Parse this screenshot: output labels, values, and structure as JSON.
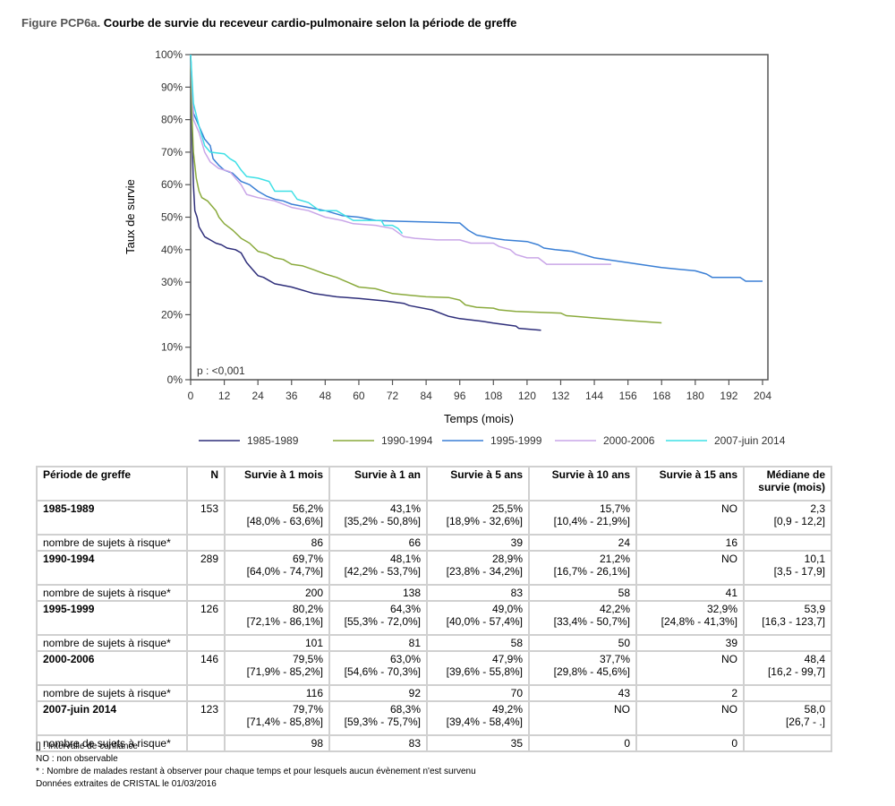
{
  "figure": {
    "prefix": "Figure PCP6a.",
    "title": "Courbe de survie du receveur cardio-pulmonaire selon la période de greffe"
  },
  "chart_data": {
    "type": "line",
    "title": "Courbe de survie du receveur cardio-pulmonaire selon la période de greffe",
    "xlabel": "Temps (mois)",
    "ylabel": "Taux de survie",
    "xlim": [
      0,
      204
    ],
    "ylim": [
      0,
      100
    ],
    "xticks": [
      "0",
      "12",
      "24",
      "36",
      "48",
      "60",
      "72",
      "84",
      "96",
      "108",
      "120",
      "132",
      "144",
      "156",
      "168",
      "180",
      "192",
      "204"
    ],
    "yticks": [
      "0%",
      "10%",
      "20%",
      "30%",
      "40%",
      "50%",
      "60%",
      "70%",
      "80%",
      "90%",
      "100%"
    ],
    "annotation": "p : <0,001",
    "legend_position": "bottom",
    "grid": false,
    "series": [
      {
        "name": "1985-1989",
        "color": "#2e2e7a",
        "points": [
          [
            0,
            100
          ],
          [
            0.5,
            75
          ],
          [
            1,
            60
          ],
          [
            1.5,
            52
          ],
          [
            2.3,
            50
          ],
          [
            3,
            47
          ],
          [
            5,
            44
          ],
          [
            7,
            43
          ],
          [
            9,
            42
          ],
          [
            11,
            41.5
          ],
          [
            13,
            40.5
          ],
          [
            16,
            40
          ],
          [
            18,
            39
          ],
          [
            20,
            36
          ],
          [
            22,
            34
          ],
          [
            24,
            32
          ],
          [
            26,
            31.5
          ],
          [
            28,
            30.5
          ],
          [
            30,
            29.5
          ],
          [
            36,
            28.5
          ],
          [
            44,
            26.5
          ],
          [
            52,
            25.5
          ],
          [
            60,
            25
          ],
          [
            70,
            24.2
          ],
          [
            76,
            23.5
          ],
          [
            78,
            22.8
          ],
          [
            86,
            21.5
          ],
          [
            92,
            19.5
          ],
          [
            96,
            18.8
          ],
          [
            104,
            18
          ],
          [
            108,
            17.4
          ],
          [
            116,
            16.5
          ],
          [
            117,
            15.8
          ],
          [
            125,
            15.2
          ]
        ]
      },
      {
        "name": "1990-1994",
        "color": "#8aaa3c",
        "points": [
          [
            0,
            100
          ],
          [
            0.5,
            80
          ],
          [
            1,
            70
          ],
          [
            2,
            62
          ],
          [
            3,
            58
          ],
          [
            4,
            56
          ],
          [
            6,
            55
          ],
          [
            9,
            52
          ],
          [
            10.1,
            50
          ],
          [
            12,
            48
          ],
          [
            15,
            46
          ],
          [
            18,
            43.5
          ],
          [
            21,
            42
          ],
          [
            24,
            39.5
          ],
          [
            27,
            38.8
          ],
          [
            30,
            37.5
          ],
          [
            33,
            37
          ],
          [
            36,
            35.5
          ],
          [
            40,
            35
          ],
          [
            44,
            33.8
          ],
          [
            48,
            32.5
          ],
          [
            52,
            31.5
          ],
          [
            56,
            30
          ],
          [
            60,
            28.5
          ],
          [
            66,
            28
          ],
          [
            72,
            26.5
          ],
          [
            78,
            26
          ],
          [
            84,
            25.5
          ],
          [
            92,
            25.3
          ],
          [
            96,
            24.5
          ],
          [
            98,
            23
          ],
          [
            102,
            22.3
          ],
          [
            108,
            22
          ],
          [
            110,
            21.5
          ],
          [
            116,
            21
          ],
          [
            132,
            20.5
          ],
          [
            134,
            19.7
          ],
          [
            144,
            19
          ],
          [
            156,
            18.2
          ],
          [
            168,
            17.5
          ]
        ]
      },
      {
        "name": "1995-1999",
        "color": "#3a7fd5",
        "points": [
          [
            0,
            100
          ],
          [
            0.5,
            90
          ],
          [
            1,
            82
          ],
          [
            3,
            78
          ],
          [
            5,
            74
          ],
          [
            7,
            72
          ],
          [
            8,
            68
          ],
          [
            10,
            66
          ],
          [
            12,
            64.5
          ],
          [
            15,
            63.5
          ],
          [
            18,
            61
          ],
          [
            21,
            60
          ],
          [
            24,
            58
          ],
          [
            27,
            56.5
          ],
          [
            30,
            55.5
          ],
          [
            33,
            55
          ],
          [
            36,
            54
          ],
          [
            42,
            53
          ],
          [
            48,
            52
          ],
          [
            54,
            50.5
          ],
          [
            60,
            50
          ],
          [
            66,
            49
          ],
          [
            72,
            48.8
          ],
          [
            84,
            48.5
          ],
          [
            96,
            48.2
          ],
          [
            99,
            46
          ],
          [
            102,
            44.5
          ],
          [
            108,
            43.5
          ],
          [
            112,
            43
          ],
          [
            120,
            42.5
          ],
          [
            124,
            41.5
          ],
          [
            126,
            40.5
          ],
          [
            130,
            40
          ],
          [
            136,
            39.5
          ],
          [
            140,
            38.5
          ],
          [
            144,
            37.5
          ],
          [
            156,
            36
          ],
          [
            168,
            34.5
          ],
          [
            180,
            33.5
          ],
          [
            184,
            32.5
          ],
          [
            186,
            31.5
          ],
          [
            196,
            31.5
          ],
          [
            198,
            30.3
          ],
          [
            204,
            30.3
          ]
        ]
      },
      {
        "name": "2000-2006",
        "color": "#c9a6e8",
        "points": [
          [
            0,
            100
          ],
          [
            0.5,
            90
          ],
          [
            1,
            80
          ],
          [
            3,
            76
          ],
          [
            5,
            70
          ],
          [
            7,
            67
          ],
          [
            10,
            65
          ],
          [
            14,
            64
          ],
          [
            18,
            60
          ],
          [
            20,
            57
          ],
          [
            24,
            56
          ],
          [
            30,
            55
          ],
          [
            36,
            53
          ],
          [
            42,
            52
          ],
          [
            48,
            50
          ],
          [
            54,
            49
          ],
          [
            58,
            48
          ],
          [
            66,
            47.5
          ],
          [
            72,
            46.5
          ],
          [
            76,
            44
          ],
          [
            80,
            43.5
          ],
          [
            88,
            43
          ],
          [
            96,
            43
          ],
          [
            100,
            42
          ],
          [
            108,
            42
          ],
          [
            110,
            41
          ],
          [
            114,
            40
          ],
          [
            116,
            38.5
          ],
          [
            120,
            37.5
          ],
          [
            124,
            37.5
          ],
          [
            127,
            35.5
          ],
          [
            150,
            35.5
          ]
        ]
      },
      {
        "name": "2007-juin 2014",
        "color": "#3fe0e6",
        "points": [
          [
            0,
            100
          ],
          [
            1,
            85
          ],
          [
            3,
            78
          ],
          [
            5,
            72
          ],
          [
            7,
            70
          ],
          [
            12,
            69.5
          ],
          [
            14,
            68
          ],
          [
            16,
            67
          ],
          [
            18,
            64.5
          ],
          [
            20,
            62.5
          ],
          [
            24,
            62
          ],
          [
            28,
            61
          ],
          [
            30,
            58
          ],
          [
            36,
            58
          ],
          [
            38,
            55.5
          ],
          [
            42,
            54.5
          ],
          [
            46,
            52
          ],
          [
            52,
            52
          ],
          [
            58,
            49
          ],
          [
            60,
            49
          ],
          [
            64,
            49
          ],
          [
            68,
            49
          ],
          [
            69,
            47.5
          ],
          [
            72,
            47.5
          ],
          [
            74,
            46.5
          ],
          [
            75.5,
            45
          ]
        ]
      }
    ]
  },
  "table": {
    "headers": [
      "Période de greffe",
      "N",
      "Survie à 1 mois",
      "Survie à 1 an",
      "Survie à 5 ans",
      "Survie à 10 ans",
      "Survie à 15 ans",
      "Médiane de survie (mois)"
    ],
    "groups": [
      {
        "period": "1985-1989",
        "n": "153",
        "values": [
          "56,2%",
          "43,1%",
          "25,5%",
          "15,7%",
          "NO",
          "2,3"
        ],
        "ci": [
          "[48,0% - 63,6%]",
          "[35,2% - 50,8%]",
          "[18,9% - 32,6%]",
          "[10,4% - 21,9%]",
          "",
          "[0,9 - 12,2]"
        ],
        "risk_label": "nombre de sujets à risque*",
        "at_risk": [
          "86",
          "66",
          "39",
          "24",
          "16",
          ""
        ]
      },
      {
        "period": "1990-1994",
        "n": "289",
        "values": [
          "69,7%",
          "48,1%",
          "28,9%",
          "21,2%",
          "NO",
          "10,1"
        ],
        "ci": [
          "[64,0% - 74,7%]",
          "[42,2% - 53,7%]",
          "[23,8% - 34,2%]",
          "[16,7% - 26,1%]",
          "",
          "[3,5 - 17,9]"
        ],
        "risk_label": "nombre de sujets à risque*",
        "at_risk": [
          "200",
          "138",
          "83",
          "58",
          "41",
          ""
        ]
      },
      {
        "period": "1995-1999",
        "n": "126",
        "values": [
          "80,2%",
          "64,3%",
          "49,0%",
          "42,2%",
          "32,9%",
          "53,9"
        ],
        "ci": [
          "[72,1% - 86,1%]",
          "[55,3% - 72,0%]",
          "[40,0% - 57,4%]",
          "[33,4% - 50,7%]",
          "[24,8% - 41,3%]",
          "[16,3 - 123,7]"
        ],
        "risk_label": "nombre de sujets à risque*",
        "at_risk": [
          "101",
          "81",
          "58",
          "50",
          "39",
          ""
        ]
      },
      {
        "period": "2000-2006",
        "n": "146",
        "values": [
          "79,5%",
          "63,0%",
          "47,9%",
          "37,7%",
          "NO",
          "48,4"
        ],
        "ci": [
          "[71,9% - 85,2%]",
          "[54,6% - 70,3%]",
          "[39,6% - 55,8%]",
          "[29,8% - 45,6%]",
          "",
          "[16,2 - 99,7]"
        ],
        "risk_label": "nombre de sujets à risque*",
        "at_risk": [
          "116",
          "92",
          "70",
          "43",
          "2",
          ""
        ]
      },
      {
        "period": "2007-juin 2014",
        "n": "123",
        "values": [
          "79,7%",
          "68,3%",
          "49,2%",
          "NO",
          "NO",
          "58,0"
        ],
        "ci": [
          "[71,4% - 85,8%]",
          "[59,3% - 75,7%]",
          "[39,4% - 58,4%]",
          "",
          "",
          "[26,7 - .]"
        ],
        "risk_label": "nombre de sujets à risque*",
        "at_risk": [
          "98",
          "83",
          "35",
          "0",
          "0",
          ""
        ]
      }
    ]
  },
  "footnotes": [
    "[] : Intervalle de confiance",
    "NO : non observable",
    "* : Nombre de malades restant à observer pour chaque temps et pour lesquels aucun évènement n'est survenu",
    "Données extraites de CRISTAL le 01/03/2016"
  ]
}
